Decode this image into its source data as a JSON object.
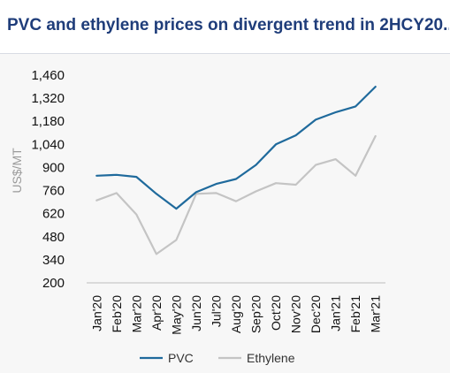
{
  "header": {
    "title": "PVC and ethylene prices on divergent trend in 2HCY20..."
  },
  "chart_data": {
    "type": "line",
    "title": "PVC and ethylene prices on divergent trend in 2HCY20...",
    "xlabel": "",
    "ylabel": "US$/MT",
    "ylim": [
      200,
      1460
    ],
    "yticks": [
      200,
      340,
      480,
      620,
      760,
      900,
      1040,
      1180,
      1320,
      1460
    ],
    "categories": [
      "Jan'20",
      "Feb'20",
      "Mar'20",
      "Apr'20",
      "May'20",
      "Jun'20",
      "Jul'20",
      "Aug'20",
      "Sep'20",
      "Oct'20",
      "Nov'20",
      "Dec'20",
      "Jan'21",
      "Feb'21",
      "Mar'21"
    ],
    "series": [
      {
        "name": "PVC",
        "color": "#1f6a9c",
        "values": [
          850,
          855,
          843,
          740,
          650,
          750,
          800,
          830,
          915,
          1040,
          1095,
          1190,
          1235,
          1270,
          1390
        ]
      },
      {
        "name": "Ethylene",
        "color": "#c4c4c4",
        "values": [
          700,
          745,
          615,
          375,
          460,
          740,
          745,
          695,
          755,
          805,
          795,
          915,
          950,
          850,
          1090
        ]
      }
    ],
    "grid": false,
    "legend": "bottom"
  }
}
